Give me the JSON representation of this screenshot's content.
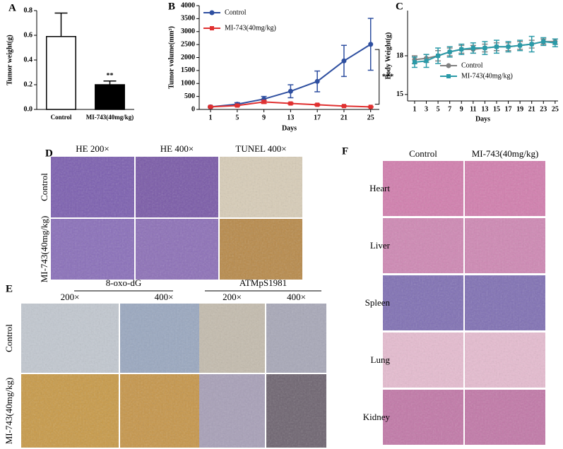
{
  "chart_data": [
    {
      "type": "bar",
      "panel_label": "A",
      "ylabel": "Tumor weight(g)",
      "categories": [
        "Control",
        "MI-743(40mg/kg)"
      ],
      "values": [
        0.59,
        0.2
      ],
      "errors": [
        0.19,
        0.03
      ],
      "colors": [
        "#ffffff",
        "#000000"
      ],
      "annotation": "**",
      "ylim": [
        0,
        0.8
      ],
      "yticks": [
        {
          "value": 0,
          "label": "0.0"
        },
        0.2,
        0.4,
        0.6,
        0.8
      ],
      "grid": false
    },
    {
      "type": "line",
      "panel_label": "B",
      "xlabel": "Days",
      "ylabel": "Tumor volume(mm³)",
      "x": [
        1,
        5,
        9,
        13,
        17,
        21,
        25
      ],
      "series": [
        {
          "name": "Control",
          "color": "#2e4fa0",
          "values": [
            100,
            200,
            400,
            700,
            1080,
            1870,
            2510
          ],
          "errors": [
            30,
            60,
            100,
            250,
            400,
            600,
            1000
          ]
        },
        {
          "name": "MI-743(40mg/kg)",
          "color": "#e03030",
          "values": [
            100,
            150,
            290,
            230,
            180,
            130,
            100
          ],
          "errors": [
            20,
            30,
            60,
            30,
            30,
            20,
            20
          ]
        }
      ],
      "annotation": "***",
      "legend": "upper left",
      "xlim": [
        -0.7,
        26.3
      ],
      "xticks": [
        1,
        5,
        9,
        13,
        17,
        21,
        25
      ],
      "ylim": [
        0,
        4000
      ],
      "yticks": [
        0,
        500,
        1000,
        1500,
        2000,
        2500,
        3000,
        3500,
        4000
      ],
      "grid": false
    },
    {
      "type": "line",
      "panel_label": "C",
      "xlabel": "Days",
      "ylabel": "Body Weight(g)",
      "x": [
        1,
        3,
        5,
        7,
        9,
        11,
        13,
        15,
        17,
        19,
        21,
        23,
        25
      ],
      "series": [
        {
          "name": "Control",
          "color": "#808080",
          "values": [
            17.7,
            17.8,
            18.0,
            18.3,
            18.5,
            18.5,
            18.6,
            18.7,
            18.7,
            18.8,
            18.9,
            19.1,
            19.1
          ],
          "errors": [
            0.3,
            0.3,
            0.4,
            0.3,
            0.3,
            0.3,
            0.3,
            0.3,
            0.3,
            0.3,
            0.3,
            0.2,
            0.2
          ]
        },
        {
          "name": "MI-743(40mg/kg)",
          "color": "#2a9aa8",
          "values": [
            17.5,
            17.6,
            18.0,
            18.3,
            18.5,
            18.6,
            18.6,
            18.7,
            18.7,
            18.8,
            18.9,
            19.1,
            19.0
          ],
          "errors": [
            0.4,
            0.5,
            0.6,
            0.4,
            0.4,
            0.4,
            0.5,
            0.5,
            0.4,
            0.4,
            0.6,
            0.3,
            0.3
          ]
        }
      ],
      "legend": "center right",
      "xlim": [
        -0.2,
        25.5
      ],
      "xticks": [
        1,
        3,
        5,
        7,
        9,
        11,
        13,
        15,
        17,
        19,
        21,
        23,
        25
      ],
      "ylim": [
        14.5,
        21.5
      ],
      "yticks": [
        15,
        18
      ],
      "grid": false
    }
  ],
  "image_panels": {
    "D": {
      "label": "D",
      "columns": [
        "HE 200×",
        "HE 400×",
        "TUNEL 400×"
      ],
      "rows": [
        "Control",
        "MI-743(40mg/kg)"
      ]
    },
    "E": {
      "label": "E",
      "groups": [
        {
          "name": "8-oxo-dG",
          "columns": [
            "200×",
            "400×"
          ]
        },
        {
          "name": "ATMpS1981",
          "columns": [
            "200×",
            "400×"
          ]
        }
      ],
      "rows": [
        "Control",
        "MI-743(40mg/kg)"
      ]
    },
    "F": {
      "label": "F",
      "columns": [
        "Control",
        "MI-743(40mg/kg)"
      ],
      "rows": [
        "Heart",
        "Liver",
        "Spleen",
        "Lung",
        "Kidney"
      ]
    }
  }
}
